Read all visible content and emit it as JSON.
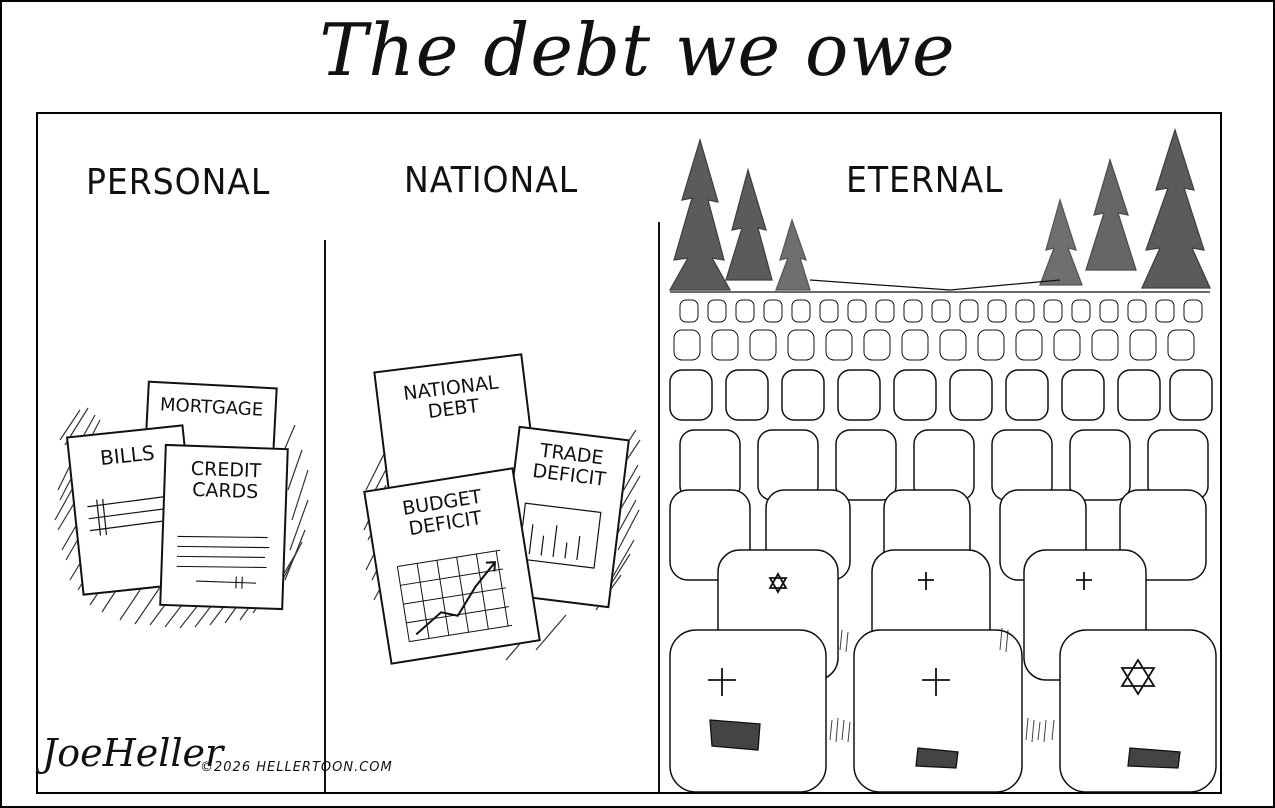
{
  "title": "The debt we owe",
  "panels": {
    "personal": {
      "heading": "PERSONAL",
      "documents": {
        "mortgage": "MORTGAGE",
        "bills": "BILLS",
        "credit_cards": "CREDIT CARDS"
      }
    },
    "national": {
      "heading": "NATIONAL",
      "documents": {
        "national_debt": "NATIONAL DEBT",
        "trade_deficit": "TRADE DEFICIT",
        "budget_deficit": "BUDGET DEFICIT"
      }
    },
    "eternal": {
      "heading": "ETERNAL"
    }
  },
  "credit": {
    "signature": "JoeHeller",
    "copyright": "©2026 HELLERTOON.COM"
  },
  "colors": {
    "ink": "#111111",
    "paper": "#ffffff"
  }
}
